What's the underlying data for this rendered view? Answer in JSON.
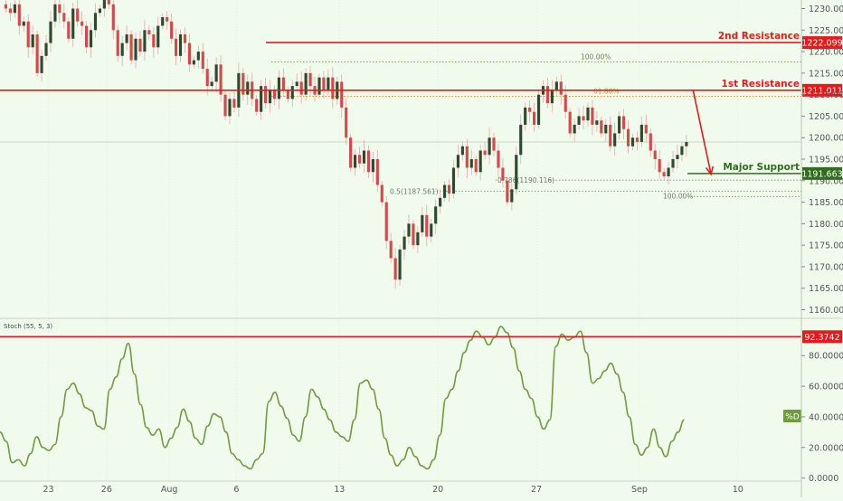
{
  "colors": {
    "background": "#f0fbee",
    "up": "#2e4a2e",
    "down": "#d84848",
    "resistance": "#e8191a",
    "support": "#2f6e1c",
    "stoch": "#6f9c3c",
    "fib_green": "#7aa85a",
    "fib_orange": "#d49a2a",
    "grid": "#dde8da",
    "axis_text": "#555555"
  },
  "chart_data": [
    {
      "type": "candlestick",
      "ylim": [
        1158,
        1232
      ],
      "y_ticks": [
        "1160.000",
        "1165.000",
        "1170.000",
        "1175.000",
        "1180.000",
        "1185.000",
        "1190.000",
        "1195.000",
        "1200.000",
        "1205.000",
        "1210.000",
        "1215.000",
        "1220.000",
        "1225.000",
        "1230.000"
      ],
      "x_ticks": [
        {
          "label": "23",
          "bar": 10
        },
        {
          "label": "26",
          "bar": 23
        },
        {
          "label": "Aug",
          "bar": 37
        },
        {
          "label": "6",
          "bar": 52
        },
        {
          "label": "13",
          "bar": 75
        },
        {
          "label": "20",
          "bar": 97
        },
        {
          "label": "27",
          "bar": 119
        },
        {
          "label": "Sep",
          "bar": 142
        },
        {
          "label": "10",
          "bar": 164
        }
      ],
      "closes": [
        1230,
        1229,
        1231,
        1226,
        1227,
        1221,
        1224,
        1215,
        1219,
        1222,
        1227,
        1231,
        1229,
        1227,
        1223,
        1230,
        1227,
        1226,
        1221,
        1225,
        1229,
        1230,
        1232,
        1231,
        1225,
        1219,
        1222,
        1224,
        1218,
        1223,
        1220,
        1225,
        1224,
        1221,
        1226,
        1228,
        1227,
        1223,
        1219,
        1224,
        1222,
        1217,
        1218,
        1220,
        1216,
        1212,
        1213,
        1217,
        1210,
        1205,
        1209,
        1207,
        1215,
        1210,
        1213,
        1209,
        1206,
        1212,
        1208,
        1211,
        1209,
        1214,
        1211,
        1209,
        1212,
        1213,
        1210,
        1215,
        1212,
        1210,
        1214,
        1211,
        1214,
        1209,
        1213,
        1207,
        1200,
        1193,
        1196,
        1194,
        1197,
        1192,
        1195,
        1189,
        1185,
        1176,
        1172,
        1167,
        1174,
        1177,
        1180,
        1175,
        1178,
        1182,
        1177,
        1180,
        1184,
        1186,
        1189,
        1187,
        1193,
        1196,
        1198,
        1193,
        1195,
        1192,
        1197,
        1196,
        1200,
        1197,
        1193,
        1190,
        1185,
        1188,
        1196,
        1203,
        1207,
        1206,
        1203,
        1210,
        1212,
        1208,
        1211,
        1213,
        1210,
        1206,
        1201,
        1203,
        1205,
        1204,
        1207,
        1203,
        1204,
        1201,
        1203,
        1198,
        1201,
        1205,
        1202,
        1198,
        1200,
        1199,
        1203,
        1201,
        1197,
        1195,
        1192,
        1191,
        1193,
        1195,
        1196,
        1198,
        1199
      ],
      "levels": [
        {
          "name": "2nd Resistance",
          "value": 1222.099,
          "label": "1222.099",
          "style": "resistance"
        },
        {
          "name": "1st Resistance",
          "value": 1211.011,
          "label": "1211.011",
          "style": "resistance"
        },
        {
          "name": "Major Support",
          "value": 1191.663,
          "label": "1191.663",
          "style": "support"
        }
      ],
      "fib_lines": [
        {
          "label": "100.00%",
          "value": 1217.6,
          "style": "green"
        },
        {
          "label": "61.80%",
          "value": 1209.6,
          "style": "orange"
        },
        {
          "label": "0.786(1190.116)",
          "value": 1190.116,
          "style": "green"
        },
        {
          "label": "0.5(1187.561)",
          "value": 1187.561,
          "style": "green"
        },
        {
          "label": "100.00%",
          "value": 1186.3,
          "style": "green"
        }
      ],
      "current_price_value": 1199.0,
      "projection": {
        "from_bar": 154,
        "from_value": 1211.0,
        "to_bar": 158,
        "to_value": 1191.5
      }
    },
    {
      "type": "line",
      "title": "Stoch (55, 5, 3)",
      "ylim": [
        -2,
        102
      ],
      "y_ticks": [
        "0.0000",
        "20.0000",
        "40.0000",
        "60.0000",
        "80.0000"
      ],
      "series": [
        {
          "name": "%D",
          "values": [
            30,
            24,
            10,
            12,
            8,
            16,
            27,
            20,
            18,
            22,
            40,
            58,
            62,
            55,
            46,
            44,
            34,
            32,
            58,
            66,
            78,
            88,
            68,
            48,
            33,
            28,
            32,
            20,
            26,
            33,
            45,
            37,
            26,
            22,
            34,
            42,
            40,
            30,
            16,
            12,
            8,
            6,
            12,
            16,
            50,
            56,
            47,
            39,
            28,
            24,
            40,
            58,
            53,
            45,
            38,
            30,
            27,
            24,
            38,
            62,
            64,
            58,
            45,
            26,
            15,
            8,
            12,
            20,
            14,
            8,
            6,
            12,
            28,
            52,
            58,
            70,
            82,
            90,
            96,
            92,
            87,
            92,
            99,
            95,
            85,
            70,
            58,
            52,
            40,
            32,
            38,
            86,
            94,
            90,
            92,
            96,
            82,
            62,
            65,
            70,
            75,
            68,
            56,
            40,
            22,
            15,
            20,
            32,
            20,
            14,
            24,
            30,
            38
          ]
        }
      ],
      "levels": [
        {
          "value": 92.3742,
          "label": "92.3742",
          "style": "resistance"
        }
      ]
    }
  ],
  "labels": {
    "second_resistance": "2nd Resistance",
    "first_resistance": "1st Resistance",
    "major_support": "Major Support",
    "stoch_title": "Stoch (55, 5, 3)",
    "stoch_badge": "%D"
  }
}
